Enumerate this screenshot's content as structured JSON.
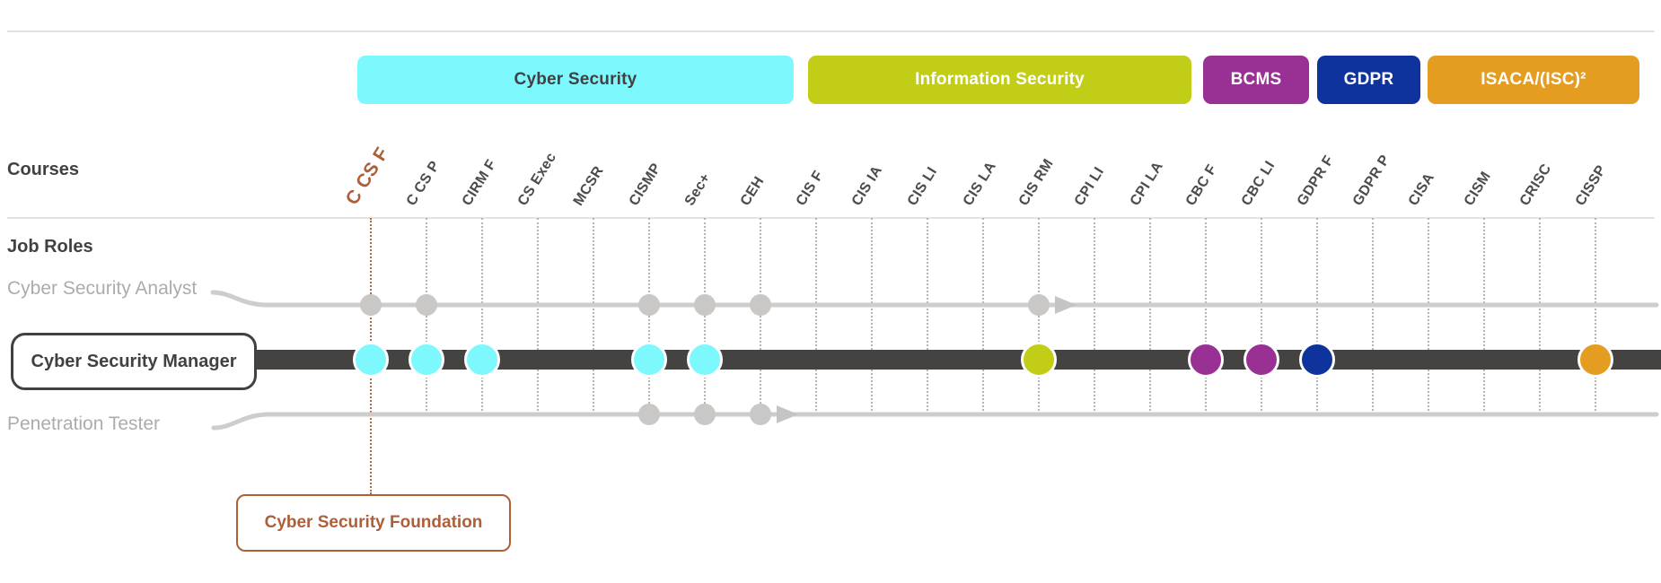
{
  "page": {
    "courses_label": "Courses",
    "job_roles_label": "Job Roles"
  },
  "legend": {
    "pills": [
      {
        "label": "Cyber Security",
        "color": "#7DF8FD",
        "text_color": "#414042"
      },
      {
        "label": "Information Security",
        "color": "#C1CD17",
        "text_color": "#FFFFFF"
      },
      {
        "label": "BCMS",
        "color": "#993194",
        "text_color": "#FFFFFF"
      },
      {
        "label": "GDPR",
        "color": "#0F339D",
        "text_color": "#FFFFFF"
      },
      {
        "label": "ISACA/(ISC)²",
        "color": "#E49D20",
        "text_color": "#FFFFFF"
      }
    ]
  },
  "courses": {
    "highlight": "C CS F",
    "items": [
      "C CS F",
      "C CS P",
      "CIRM F",
      "CS Exec",
      "MCSR",
      "CISMP",
      "Sec+",
      "CEH",
      "CIS F",
      "CIS IA",
      "CIS LI",
      "CIS LA",
      "CIS RM",
      "CPI LI",
      "CPI LA",
      "CBC F",
      "CBC LI",
      "GDPR F",
      "GDPR P",
      "CISA",
      "CISM",
      "CRISC",
      "CISSP"
    ]
  },
  "roles": [
    {
      "name": "Cyber Security Analyst",
      "style": "secondary",
      "dots": [
        {
          "course": "C CS F"
        },
        {
          "course": "C CS P"
        },
        {
          "course": "CISMP"
        },
        {
          "course": "Sec+"
        },
        {
          "course": "CEH"
        },
        {
          "course": "CIS RM"
        }
      ],
      "arrow_after": "CIS RM"
    },
    {
      "name": "Cyber Security Manager",
      "style": "primary",
      "boxed": true,
      "dots": [
        {
          "course": "C CS F",
          "color": "#7DF8FD"
        },
        {
          "course": "C CS P",
          "color": "#7DF8FD"
        },
        {
          "course": "CIRM F",
          "color": "#7DF8FD"
        },
        {
          "course": "CISMP",
          "color": "#7DF8FD"
        },
        {
          "course": "Sec+",
          "color": "#7DF8FD"
        },
        {
          "course": "CIS RM",
          "color": "#C1CD17"
        },
        {
          "course": "CBC F",
          "color": "#993194"
        },
        {
          "course": "CBC LI",
          "color": "#993194"
        },
        {
          "course": "GDPR F",
          "color": "#0F339D"
        },
        {
          "course": "CISSP",
          "color": "#E49D20"
        }
      ]
    },
    {
      "name": "Penetration Tester",
      "style": "secondary",
      "dots": [
        {
          "course": "CISMP"
        },
        {
          "course": "Sec+"
        },
        {
          "course": "CEH"
        }
      ],
      "arrow_after": "CEH"
    }
  ],
  "callout": {
    "label": "Cyber Security Foundation",
    "for_course": "C CS F",
    "color": "#AC603A"
  },
  "colors": {
    "highlight": "#AC603A",
    "highlight_dotted": "#B06A42",
    "grid_dotted": "#B7B5B3",
    "secondary_line": "#CECDCB",
    "secondary_dot": "#C9C8C6",
    "arrow": "#C6C4C2",
    "primary_bar": "#454341",
    "dark_text": "#414042",
    "gray_text": "#ACACAC"
  }
}
